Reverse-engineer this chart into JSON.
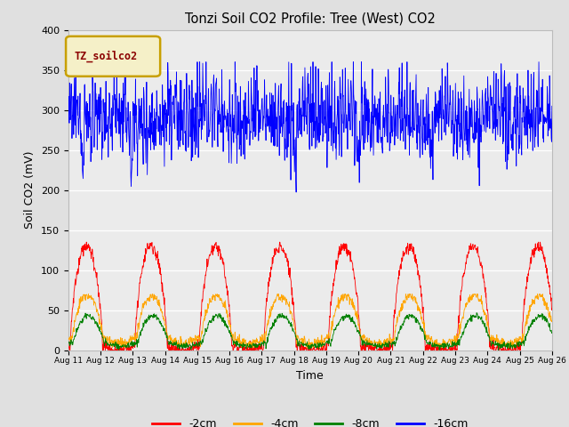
{
  "title": "Tonzi Soil CO2 Profile: Tree (West) CO2",
  "xlabel": "Time",
  "ylabel": "Soil CO2 (mV)",
  "legend_label": "TZ_soilco2",
  "series_labels": [
    "-2cm",
    "-4cm",
    "-8cm",
    "-16cm"
  ],
  "series_colors": [
    "red",
    "orange",
    "green",
    "blue"
  ],
  "ylim": [
    0,
    400
  ],
  "yticks": [
    0,
    50,
    100,
    150,
    200,
    250,
    300,
    350,
    400
  ],
  "xtick_labels": [
    "Aug 11",
    "Aug 12",
    "Aug 13",
    "Aug 14",
    "Aug 15",
    "Aug 16",
    "Aug 17",
    "Aug 18",
    "Aug 19",
    "Aug 20",
    "Aug 21",
    "Aug 22",
    "Aug 23",
    "Aug 24",
    "Aug 25",
    "Aug 26"
  ],
  "n_points": 1440,
  "bg_color": "#e0e0e0",
  "plot_bg_color": "#ebebeb",
  "legend_box_facecolor": "#f5f0c8",
  "legend_text_color": "#8b0000",
  "legend_edge_color": "#c8a000"
}
